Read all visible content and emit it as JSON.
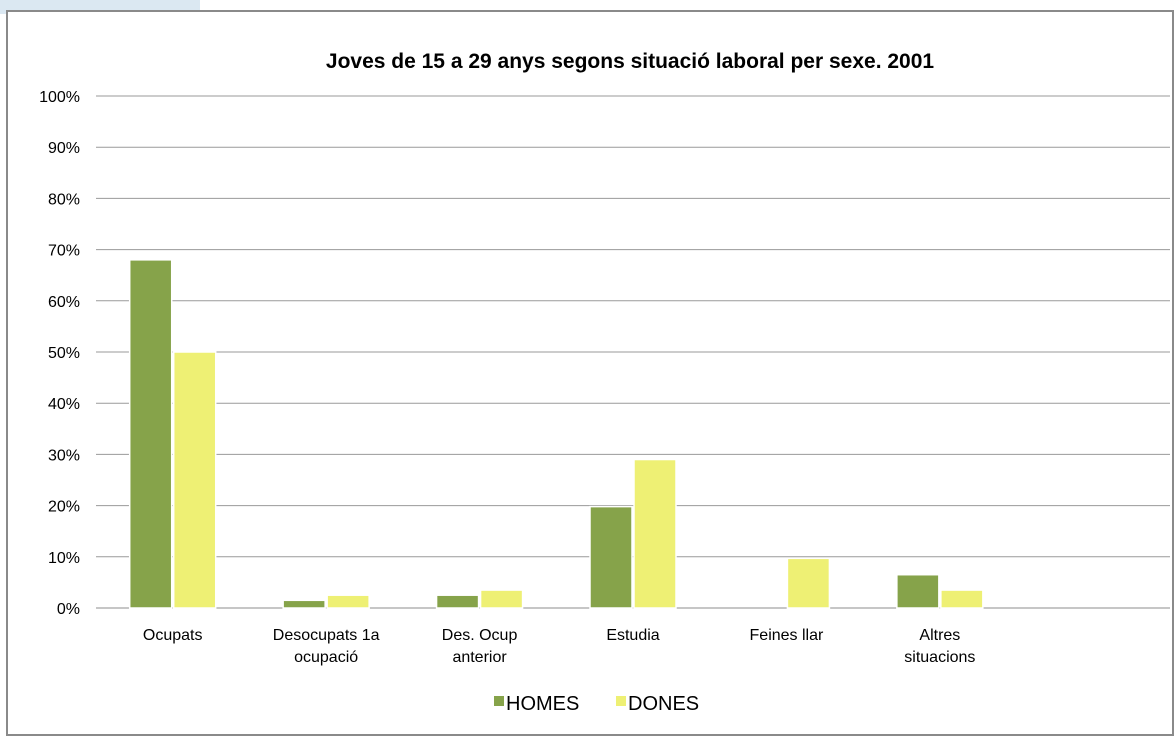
{
  "chart_data": {
    "type": "bar",
    "title": "Joves de 15 a 29 anys segons situació laboral per sexe. 2001",
    "xlabel": "",
    "ylabel": "",
    "ylim": [
      0,
      100
    ],
    "yticks": [
      "0%",
      "10%",
      "20%",
      "30%",
      "40%",
      "50%",
      "60%",
      "70%",
      "80%",
      "90%",
      "100%"
    ],
    "grid": true,
    "legend_position": "bottom",
    "categories": [
      [
        "Ocupats"
      ],
      [
        "Desocupats 1a",
        "ocupació"
      ],
      [
        "Des. Ocup",
        "anterior"
      ],
      [
        "Estudia"
      ],
      [
        "Feines llar"
      ],
      [
        "Altres",
        "situacions"
      ],
      [
        ""
      ]
    ],
    "series": [
      {
        "name": "HOMES",
        "color": "#86a34a",
        "values": [
          68,
          1.5,
          2.5,
          19.8,
          0,
          6.5,
          0
        ]
      },
      {
        "name": "DONES",
        "color": "#eef074",
        "values": [
          50,
          2.5,
          3.5,
          29,
          9.7,
          3.5,
          0
        ]
      }
    ]
  }
}
